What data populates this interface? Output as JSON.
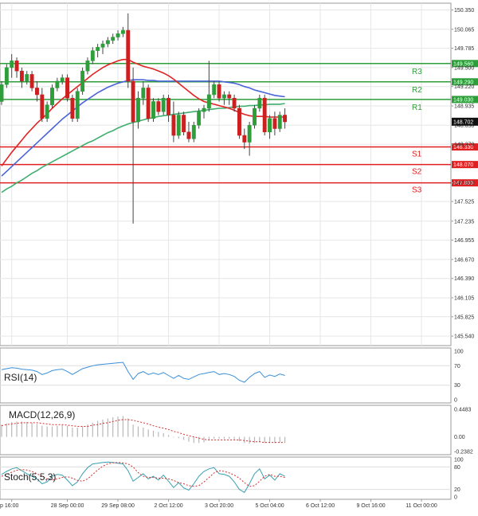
{
  "chart_data": [
    {
      "type": "candlestick",
      "panel": "price",
      "colors": {
        "bull": "#2e9e3a",
        "bear": "#cc1f1f",
        "background": "#ffffff",
        "grid": "#e6e6e6"
      },
      "ylim": [
        145.4,
        150.45
      ],
      "y_ticks": [
        "150.350",
        "150.065",
        "149.785",
        "149.500",
        "149.220",
        "148.935",
        "148.650",
        "148.370",
        "147.800",
        "147.525",
        "147.235",
        "146.955",
        "146.670",
        "146.390",
        "146.105",
        "145.825",
        "145.540"
      ],
      "x_tick_labels": [
        "p 16:00",
        "28 Sep 00:00",
        "29 Sep 08:00",
        "2 Oct 12:00",
        "3 Oct 20:00",
        "5 Oct 04:00",
        "6 Oct 12:00",
        "9 Oct 16:00",
        "11 Oct 00:00"
      ],
      "x_tick_positions": [
        2,
        13,
        23,
        33,
        43,
        53,
        63,
        73,
        83
      ],
      "current_price": {
        "value": 148.702,
        "label": "148.702"
      },
      "candles": [
        [
          149.0,
          149.3,
          148.95,
          149.25
        ],
        [
          149.25,
          149.55,
          149.2,
          149.5
        ],
        [
          149.5,
          149.7,
          149.35,
          149.6
        ],
        [
          149.6,
          149.65,
          149.35,
          149.45
        ],
        [
          149.45,
          149.5,
          149.2,
          149.3
        ],
        [
          149.3,
          149.45,
          149.25,
          149.4
        ],
        [
          149.4,
          149.45,
          149.15,
          149.2
        ],
        [
          149.2,
          149.3,
          149.0,
          149.1
        ],
        [
          149.1,
          149.2,
          148.7,
          148.75
        ],
        [
          148.75,
          149.0,
          148.7,
          148.95
        ],
        [
          148.95,
          149.25,
          148.9,
          149.2
        ],
        [
          149.2,
          149.35,
          149.15,
          149.3
        ],
        [
          149.3,
          149.4,
          149.25,
          149.35
        ],
        [
          149.35,
          149.4,
          149.0,
          149.05
        ],
        [
          149.05,
          149.1,
          148.7,
          148.75
        ],
        [
          148.75,
          149.2,
          148.7,
          149.15
        ],
        [
          149.15,
          149.5,
          149.1,
          149.45
        ],
        [
          149.45,
          149.65,
          149.4,
          149.6
        ],
        [
          149.6,
          149.8,
          149.55,
          149.75
        ],
        [
          149.75,
          149.85,
          149.65,
          149.8
        ],
        [
          149.8,
          149.9,
          149.7,
          149.85
        ],
        [
          149.85,
          149.95,
          149.8,
          149.9
        ],
        [
          149.9,
          150.0,
          149.85,
          149.95
        ],
        [
          149.95,
          150.05,
          149.9,
          150.0
        ],
        [
          150.0,
          150.1,
          149.95,
          150.05
        ],
        [
          150.05,
          150.3,
          149.2,
          149.3
        ],
        [
          149.3,
          149.5,
          147.2,
          148.7
        ],
        [
          148.7,
          149.15,
          148.6,
          149.05
        ],
        [
          149.05,
          149.3,
          148.95,
          149.2
        ],
        [
          149.2,
          149.25,
          148.7,
          148.75
        ],
        [
          148.75,
          149.05,
          148.7,
          149.0
        ],
        [
          149.0,
          149.05,
          148.8,
          148.85
        ],
        [
          148.85,
          149.1,
          148.8,
          149.05
        ],
        [
          149.05,
          149.1,
          148.7,
          148.8
        ],
        [
          148.8,
          149.0,
          148.4,
          148.5
        ],
        [
          148.5,
          148.85,
          148.45,
          148.8
        ],
        [
          148.8,
          148.85,
          148.5,
          148.55
        ],
        [
          148.55,
          148.7,
          148.4,
          148.45
        ],
        [
          148.45,
          148.7,
          148.4,
          148.65
        ],
        [
          148.65,
          148.9,
          148.6,
          148.85
        ],
        [
          148.85,
          148.95,
          148.75,
          148.9
        ],
        [
          148.9,
          149.6,
          148.85,
          149.1
        ],
        [
          149.1,
          149.3,
          149.05,
          149.25
        ],
        [
          149.25,
          149.3,
          149.0,
          149.05
        ],
        [
          149.05,
          149.15,
          148.95,
          149.1
        ],
        [
          149.1,
          149.15,
          148.95,
          149.05
        ],
        [
          149.05,
          149.1,
          148.85,
          148.9
        ],
        [
          148.9,
          148.95,
          148.45,
          148.5
        ],
        [
          148.5,
          148.6,
          148.3,
          148.4
        ],
        [
          148.4,
          148.7,
          148.2,
          148.65
        ],
        [
          148.65,
          148.95,
          148.6,
          148.9
        ],
        [
          148.9,
          149.1,
          148.85,
          149.05
        ],
        [
          149.05,
          149.1,
          148.5,
          148.55
        ],
        [
          148.55,
          148.8,
          148.45,
          148.75
        ],
        [
          148.75,
          148.85,
          148.5,
          148.6
        ],
        [
          148.6,
          148.85,
          148.55,
          148.8
        ],
        [
          148.8,
          148.9,
          148.6,
          148.7
        ]
      ],
      "ma_red": [
        148.05,
        148.15,
        148.25,
        148.34,
        148.43,
        148.52,
        148.6,
        148.68,
        148.75,
        148.82,
        148.9,
        148.97,
        149.04,
        149.1,
        149.16,
        149.22,
        149.28,
        149.34,
        149.4,
        149.45,
        149.5,
        149.54,
        149.57,
        149.6,
        149.62,
        149.62,
        149.58,
        149.55,
        149.52,
        149.5,
        149.48,
        149.45,
        149.42,
        149.38,
        149.33,
        149.27,
        149.21,
        149.15,
        149.09,
        149.04,
        149.0,
        148.98,
        148.96,
        148.94,
        148.92,
        148.9,
        148.87,
        148.84,
        148.81,
        148.79,
        148.78,
        148.78,
        148.78,
        148.77,
        148.77,
        148.77,
        148.77
      ],
      "ma_blue": [
        147.9,
        147.97,
        148.04,
        148.11,
        148.18,
        148.25,
        148.32,
        148.39,
        148.46,
        148.53,
        148.6,
        148.67,
        148.74,
        148.8,
        148.86,
        148.92,
        148.98,
        149.03,
        149.08,
        149.13,
        149.17,
        149.21,
        149.24,
        149.27,
        149.29,
        149.31,
        149.32,
        149.32,
        149.32,
        149.31,
        149.31,
        149.3,
        149.3,
        149.3,
        149.3,
        149.3,
        149.3,
        149.3,
        149.3,
        149.3,
        149.3,
        149.3,
        149.3,
        149.3,
        149.29,
        149.28,
        149.27,
        149.25,
        149.22,
        149.2,
        149.17,
        149.15,
        149.13,
        149.11,
        149.09,
        149.08,
        149.07
      ],
      "ma_green": [
        147.66,
        147.71,
        147.75,
        147.8,
        147.84,
        147.89,
        147.94,
        147.98,
        148.03,
        148.07,
        148.11,
        148.15,
        148.19,
        148.23,
        148.27,
        148.31,
        148.35,
        148.39,
        148.42,
        148.46,
        148.5,
        148.54,
        148.57,
        148.61,
        148.64,
        148.67,
        148.69,
        148.71,
        148.73,
        148.75,
        148.76,
        148.78,
        148.79,
        148.8,
        148.81,
        148.82,
        148.83,
        148.84,
        148.85,
        148.86,
        148.87,
        148.88,
        148.89,
        148.9,
        148.9,
        148.91,
        148.92,
        148.93,
        148.93,
        148.94,
        148.94,
        148.95,
        148.95,
        148.96,
        148.96,
        148.96,
        148.97
      ],
      "levels": [
        {
          "name": "R3",
          "value": 149.56,
          "label": "149.560",
          "color": "#2e9e3a"
        },
        {
          "name": "R2",
          "value": 149.29,
          "label": "149.290",
          "color": "#2e9e3a"
        },
        {
          "name": "R1",
          "value": 149.03,
          "label": "149.030",
          "color": "#2e9e3a"
        },
        {
          "name": "S1",
          "value": 148.33,
          "label": "148.330",
          "color": "#e02020"
        },
        {
          "name": "S2",
          "value": 148.07,
          "label": "148.070",
          "color": "#e02020"
        },
        {
          "name": "S3",
          "value": 147.8,
          "label": "147.800",
          "color": "#e02020"
        }
      ]
    },
    {
      "type": "line",
      "panel": "rsi",
      "title": "RSI(14)",
      "ylim": [
        0,
        100
      ],
      "y_ticks": [
        "100",
        "70",
        "30",
        "0"
      ],
      "color": "#3a8fd8",
      "values": [
        62,
        64,
        66,
        65,
        63,
        62,
        61,
        58,
        52,
        55,
        60,
        62,
        63,
        58,
        52,
        58,
        64,
        67,
        70,
        72,
        73,
        74,
        75,
        76,
        77,
        58,
        42,
        54,
        58,
        52,
        55,
        52,
        56,
        50,
        44,
        50,
        44,
        42,
        47,
        52,
        54,
        56,
        58,
        52,
        54,
        52,
        48,
        40,
        36,
        46,
        54,
        58,
        46,
        51,
        48,
        53,
        50
      ]
    },
    {
      "type": "bar",
      "panel": "macd",
      "title": "MACD(12,26,9)",
      "ylim": [
        -0.2382,
        0.4483
      ],
      "y_ticks": [
        "0.4483",
        "0.00",
        "-0.2382"
      ],
      "bar_color": "#b8b8b8",
      "signal_color": "#d43030",
      "values": [
        0.2,
        0.22,
        0.24,
        0.25,
        0.25,
        0.24,
        0.23,
        0.21,
        0.18,
        0.17,
        0.17,
        0.18,
        0.19,
        0.18,
        0.15,
        0.15,
        0.17,
        0.2,
        0.23,
        0.26,
        0.28,
        0.3,
        0.32,
        0.33,
        0.34,
        0.3,
        0.2,
        0.17,
        0.15,
        0.12,
        0.1,
        0.08,
        0.06,
        0.03,
        -0.01,
        -0.02,
        -0.05,
        -0.08,
        -0.1,
        -0.1,
        -0.09,
        -0.05,
        -0.03,
        -0.03,
        -0.03,
        -0.03,
        -0.04,
        -0.07,
        -0.1,
        -0.11,
        -0.1,
        -0.08,
        -0.1,
        -0.1,
        -0.1,
        -0.09,
        -0.09
      ],
      "signal": [
        0.18,
        0.2,
        0.21,
        0.22,
        0.23,
        0.23,
        0.23,
        0.23,
        0.22,
        0.21,
        0.2,
        0.2,
        0.2,
        0.19,
        0.18,
        0.17,
        0.17,
        0.17,
        0.19,
        0.2,
        0.22,
        0.23,
        0.25,
        0.27,
        0.28,
        0.28,
        0.27,
        0.25,
        0.23,
        0.21,
        0.18,
        0.16,
        0.14,
        0.12,
        0.09,
        0.07,
        0.04,
        0.02,
        0.0,
        -0.02,
        -0.04,
        -0.05,
        -0.05,
        -0.05,
        -0.05,
        -0.05,
        -0.05,
        -0.05,
        -0.06,
        -0.07,
        -0.08,
        -0.08,
        -0.09,
        -0.09,
        -0.09,
        -0.09,
        -0.09
      ]
    },
    {
      "type": "line",
      "panel": "stoch",
      "title": "Stoch(5,5,3)",
      "ylim": [
        0,
        100
      ],
      "y_ticks": [
        "100",
        "80",
        "20",
        "0"
      ],
      "main_color": "#3aa0b0",
      "signal_color": "#d43030",
      "values": [
        60,
        68,
        75,
        78,
        70,
        62,
        55,
        48,
        35,
        40,
        55,
        60,
        58,
        45,
        30,
        40,
        62,
        78,
        88,
        90,
        92,
        93,
        92,
        90,
        88,
        70,
        42,
        52,
        62,
        48,
        55,
        45,
        58,
        42,
        25,
        38,
        24,
        18,
        35,
        55,
        68,
        75,
        78,
        62,
        60,
        55,
        40,
        20,
        12,
        35,
        62,
        75,
        48,
        58,
        45,
        62,
        55
      ],
      "signal": [
        55,
        60,
        66,
        71,
        73,
        72,
        68,
        62,
        55,
        48,
        45,
        48,
        52,
        54,
        50,
        44,
        42,
        48,
        60,
        72,
        82,
        88,
        91,
        92,
        91,
        88,
        80,
        65,
        55,
        52,
        52,
        50,
        50,
        48,
        44,
        38,
        35,
        30,
        28,
        30,
        40,
        52,
        64,
        70,
        68,
        64,
        58,
        50,
        38,
        28,
        30,
        42,
        55,
        60,
        55,
        55,
        52
      ]
    }
  ]
}
